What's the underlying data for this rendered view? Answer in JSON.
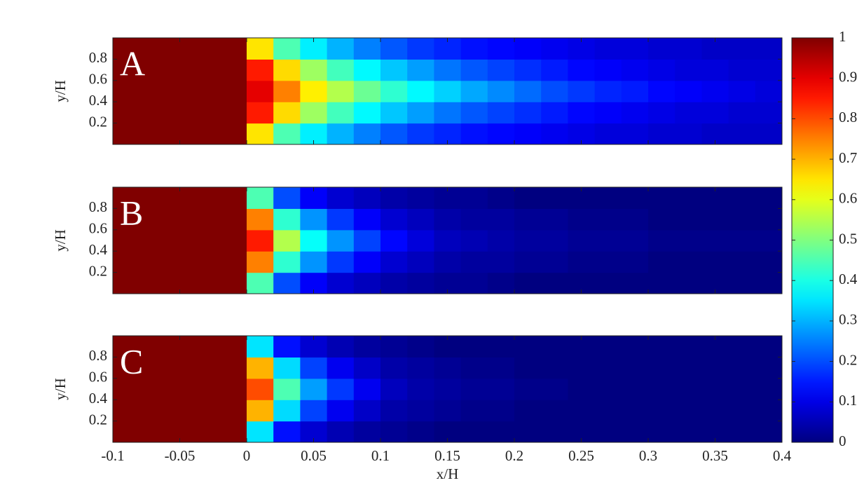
{
  "chart_data": [
    {
      "type": "contour",
      "label": "A",
      "ylabel": "y/H",
      "xlim": [
        -0.1,
        0.4
      ],
      "ylim": [
        0,
        1
      ],
      "yticks": [
        0.2,
        0.4,
        0.6,
        0.8
      ],
      "x": [
        -0.09,
        -0.07,
        -0.05,
        -0.03,
        -0.01,
        0.01,
        0.03,
        0.05,
        0.07,
        0.09,
        0.11,
        0.13,
        0.15,
        0.17,
        0.19,
        0.21,
        0.23,
        0.25,
        0.27,
        0.29,
        0.31,
        0.33,
        0.35,
        0.37,
        0.39
      ],
      "y": [
        0.1,
        0.3,
        0.5,
        0.7,
        0.9
      ],
      "z": [
        [
          1,
          1,
          1,
          1,
          1,
          0.65,
          0.45,
          0.36,
          0.3,
          0.25,
          0.21,
          0.18,
          0.16,
          0.14,
          0.13,
          0.12,
          0.11,
          0.1,
          0.09,
          0.09,
          0.08,
          0.08,
          0.07,
          0.07,
          0.07
        ],
        [
          1,
          1,
          1,
          1,
          1,
          0.85,
          0.66,
          0.53,
          0.44,
          0.37,
          0.32,
          0.28,
          0.24,
          0.21,
          0.19,
          0.17,
          0.15,
          0.13,
          0.12,
          0.11,
          0.1,
          0.09,
          0.09,
          0.08,
          0.08
        ],
        [
          1,
          1,
          1,
          1,
          1,
          0.9,
          0.75,
          0.64,
          0.55,
          0.48,
          0.42,
          0.37,
          0.33,
          0.29,
          0.26,
          0.23,
          0.2,
          0.18,
          0.16,
          0.15,
          0.13,
          0.12,
          0.11,
          0.1,
          0.09
        ],
        [
          1,
          1,
          1,
          1,
          1,
          0.85,
          0.66,
          0.53,
          0.44,
          0.37,
          0.32,
          0.28,
          0.24,
          0.21,
          0.19,
          0.17,
          0.15,
          0.13,
          0.12,
          0.11,
          0.1,
          0.09,
          0.09,
          0.08,
          0.08
        ],
        [
          1,
          1,
          1,
          1,
          1,
          0.65,
          0.45,
          0.36,
          0.3,
          0.25,
          0.21,
          0.18,
          0.16,
          0.14,
          0.13,
          0.12,
          0.11,
          0.1,
          0.09,
          0.09,
          0.08,
          0.08,
          0.07,
          0.07,
          0.07
        ]
      ]
    },
    {
      "type": "contour",
      "label": "B",
      "ylabel": "y/H",
      "xlim": [
        -0.1,
        0.4
      ],
      "ylim": [
        0,
        1
      ],
      "yticks": [
        0.2,
        0.4,
        0.6,
        0.8
      ],
      "x": [
        -0.09,
        -0.07,
        -0.05,
        -0.03,
        -0.01,
        0.01,
        0.03,
        0.05,
        0.07,
        0.09,
        0.11,
        0.13,
        0.15,
        0.17,
        0.19,
        0.21,
        0.23,
        0.25,
        0.27,
        0.29,
        0.31,
        0.33,
        0.35,
        0.37,
        0.39
      ],
      "y": [
        0.1,
        0.3,
        0.5,
        0.7,
        0.9
      ],
      "z": [
        [
          1,
          1,
          1,
          1,
          1,
          0.45,
          0.2,
          0.12,
          0.08,
          0.06,
          0.04,
          0.03,
          0.02,
          0.02,
          0.01,
          0,
          0,
          0,
          0,
          0,
          0,
          0,
          0,
          0,
          0
        ],
        [
          1,
          1,
          1,
          1,
          1,
          0.75,
          0.42,
          0.27,
          0.18,
          0.12,
          0.08,
          0.06,
          0.04,
          0.03,
          0.03,
          0.02,
          0.02,
          0.01,
          0.01,
          0.01,
          0,
          0,
          0,
          0,
          0
        ],
        [
          1,
          1,
          1,
          1,
          1,
          0.85,
          0.55,
          0.38,
          0.27,
          0.19,
          0.13,
          0.09,
          0.06,
          0.05,
          0.04,
          0.03,
          0.03,
          0.02,
          0.02,
          0.02,
          0.01,
          0.01,
          0.01,
          0.01,
          0.01
        ],
        [
          1,
          1,
          1,
          1,
          1,
          0.75,
          0.42,
          0.27,
          0.18,
          0.12,
          0.08,
          0.06,
          0.04,
          0.03,
          0.03,
          0.02,
          0.02,
          0.01,
          0.01,
          0.01,
          0,
          0,
          0,
          0,
          0
        ],
        [
          1,
          1,
          1,
          1,
          1,
          0.45,
          0.2,
          0.12,
          0.08,
          0.06,
          0.04,
          0.03,
          0.02,
          0.02,
          0.01,
          0,
          0,
          0,
          0,
          0,
          0,
          0,
          0,
          0,
          0
        ]
      ]
    },
    {
      "type": "contour",
      "label": "C",
      "ylabel": "y/H",
      "xlabel": "x/H",
      "xlim": [
        -0.1,
        0.4
      ],
      "ylim": [
        0,
        1
      ],
      "yticks": [
        0.2,
        0.4,
        0.6,
        0.8
      ],
      "xticks": [
        -0.1,
        -0.05,
        0,
        0.05,
        0.1,
        0.15,
        0.2,
        0.25,
        0.3,
        0.35,
        0.4
      ],
      "x": [
        -0.09,
        -0.07,
        -0.05,
        -0.03,
        -0.01,
        0.01,
        0.03,
        0.05,
        0.07,
        0.09,
        0.11,
        0.13,
        0.15,
        0.17,
        0.19,
        0.21,
        0.23,
        0.25,
        0.27,
        0.29,
        0.31,
        0.33,
        0.35,
        0.37,
        0.39
      ],
      "y": [
        0.1,
        0.3,
        0.5,
        0.7,
        0.9
      ],
      "z": [
        [
          1,
          1,
          1,
          1,
          1,
          0.35,
          0.14,
          0.08,
          0.05,
          0.03,
          0.02,
          0.01,
          0,
          0,
          0,
          0,
          0,
          0,
          0,
          0,
          0,
          0,
          0,
          0,
          0
        ],
        [
          1,
          1,
          1,
          1,
          1,
          0.7,
          0.34,
          0.19,
          0.11,
          0.07,
          0.04,
          0.03,
          0.02,
          0.01,
          0.01,
          0,
          0,
          0,
          0,
          0,
          0,
          0,
          0,
          0,
          0
        ],
        [
          1,
          1,
          1,
          1,
          1,
          0.8,
          0.45,
          0.28,
          0.18,
          0.11,
          0.06,
          0.04,
          0.03,
          0.02,
          0.02,
          0.01,
          0.01,
          0,
          0,
          0,
          0,
          0,
          0,
          0,
          0
        ],
        [
          1,
          1,
          1,
          1,
          1,
          0.7,
          0.34,
          0.19,
          0.11,
          0.07,
          0.04,
          0.03,
          0.02,
          0.01,
          0.01,
          0,
          0,
          0,
          0,
          0,
          0,
          0,
          0,
          0,
          0
        ],
        [
          1,
          1,
          1,
          1,
          1,
          0.35,
          0.14,
          0.08,
          0.05,
          0.03,
          0.02,
          0.01,
          0,
          0,
          0,
          0,
          0,
          0,
          0,
          0,
          0,
          0,
          0,
          0,
          0
        ]
      ]
    }
  ],
  "colorbar": {
    "colormap": "jet",
    "clim": [
      0,
      1
    ],
    "ticks": [
      0,
      0.1,
      0.2,
      0.3,
      0.4,
      0.5,
      0.6,
      0.7,
      0.8,
      0.9,
      1
    ]
  }
}
